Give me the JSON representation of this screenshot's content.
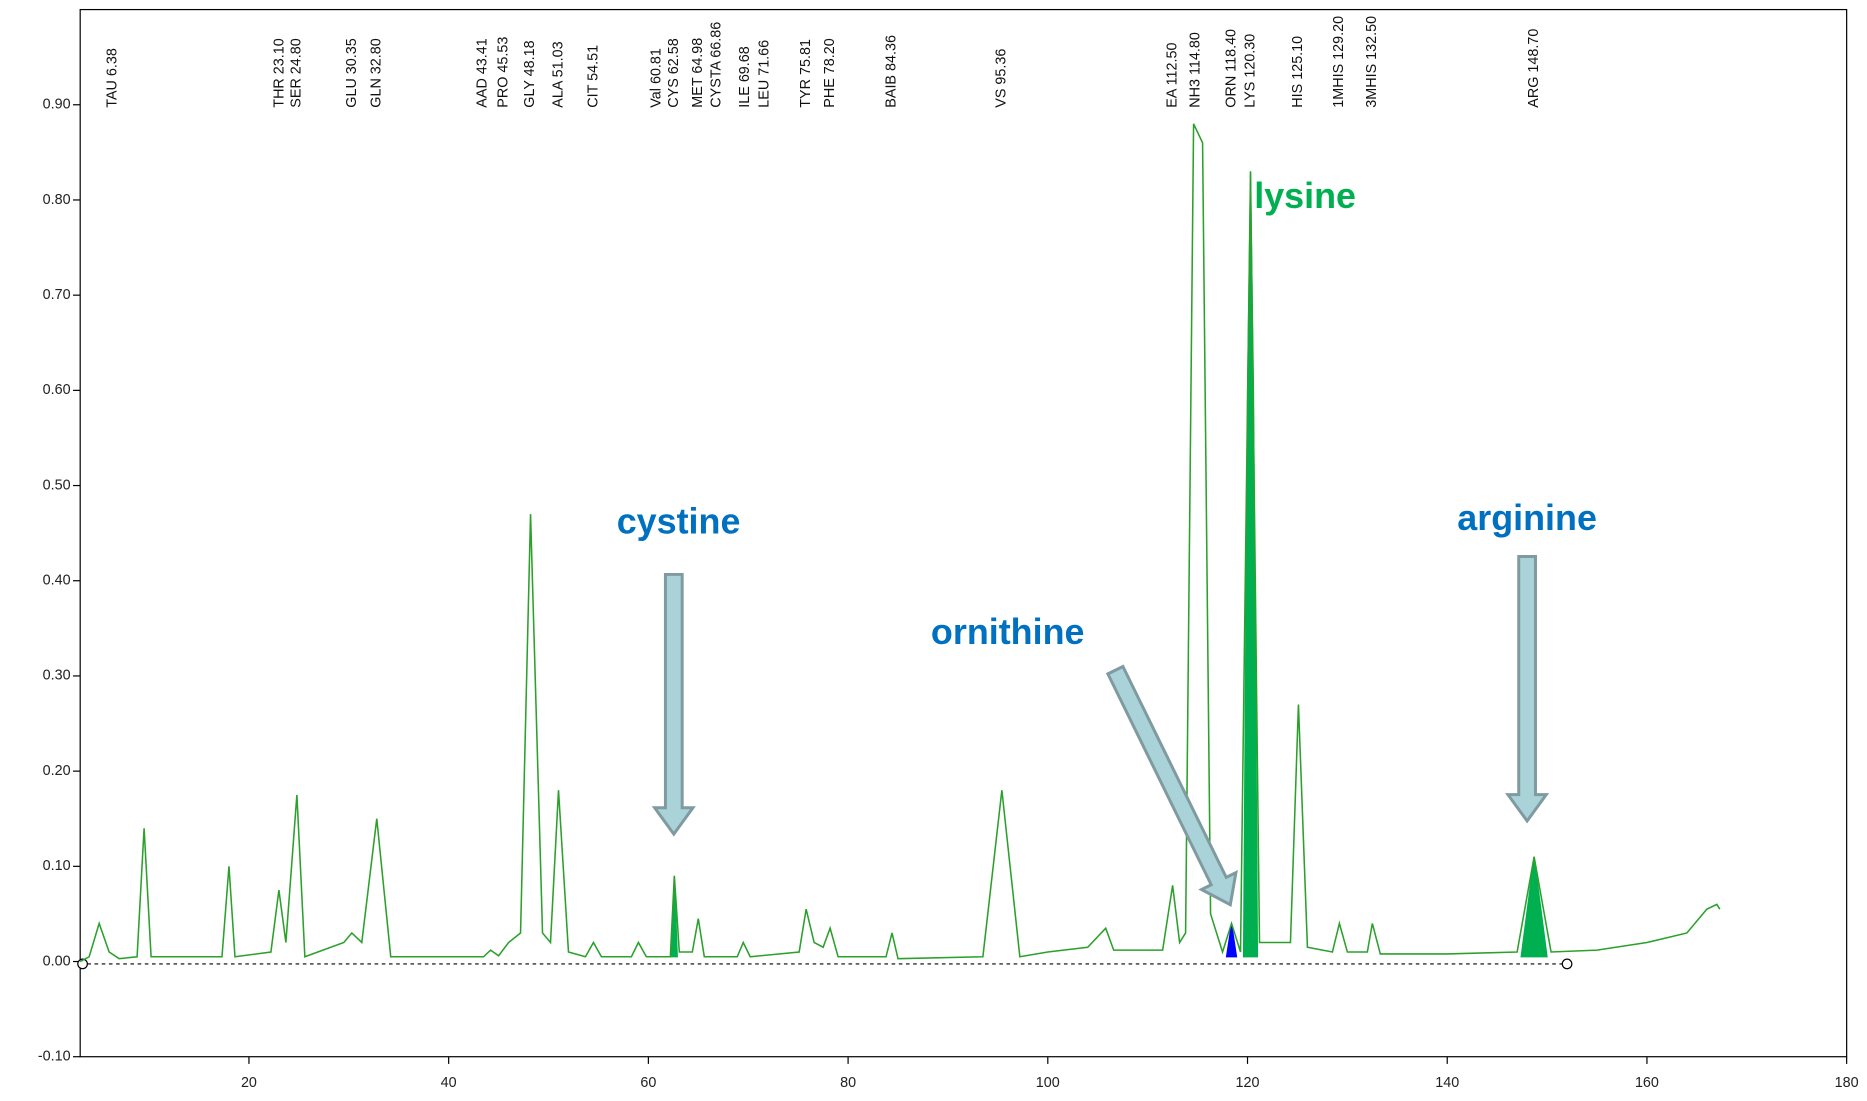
{
  "chart_data": {
    "type": "line",
    "xlim": [
      3.1,
      180
    ],
    "ylim": [
      -0.1,
      1.0
    ],
    "xticks": [
      20,
      40,
      60,
      80,
      100,
      120,
      140,
      160,
      180
    ],
    "yticks": [
      {
        "value": -0.1,
        "label": "-0.10"
      },
      {
        "value": 0,
        "label": "0.00"
      },
      {
        "value": 0.1,
        "label": "0.10"
      },
      {
        "value": 0.2,
        "label": "0.20"
      },
      {
        "value": 0.3,
        "label": "0.30"
      },
      {
        "value": 0.4,
        "label": "0.40"
      },
      {
        "value": 0.5,
        "label": "0.50"
      },
      {
        "value": 0.6,
        "label": "0.60"
      },
      {
        "value": 0.7,
        "label": "0.70"
      },
      {
        "value": 0.8,
        "label": "0.80"
      },
      {
        "value": 0.9,
        "label": "0.90"
      }
    ],
    "color": "#2ca02c",
    "x": [
      3.1,
      4,
      5,
      6,
      7,
      8.8,
      9.5,
      10.2,
      17.3,
      18,
      18.6,
      22.2,
      23,
      23.7,
      24.8,
      25.6,
      29.5,
      30.3,
      31.3,
      32.8,
      34.2,
      43.5,
      44.2,
      45,
      46,
      47.2,
      48.2,
      49.4,
      50.2,
      51,
      52,
      53.7,
      54.5,
      55.3,
      58.3,
      59,
      59.8,
      62.2,
      62.6,
      63.1,
      64.4,
      65,
      65.6,
      68.9,
      69.5,
      70.2,
      75.1,
      75.8,
      76.6,
      77.5,
      78.2,
      79,
      83.8,
      84.4,
      85,
      93.5,
      95.4,
      97.2,
      100,
      104,
      105.8,
      106.6,
      111.5,
      112.5,
      113.2,
      113.8,
      114.6,
      115.5,
      116.3,
      117.5,
      118.4,
      119.3,
      120.3,
      121.2,
      124.3,
      125.1,
      126,
      128.5,
      129.2,
      130,
      132,
      132.5,
      133.3,
      140,
      147,
      148.7,
      150.4,
      155,
      160,
      164,
      166,
      167,
      167.3
    ],
    "values": [
      0,
      0.005,
      0.04,
      0.01,
      0.003,
      0.005,
      0.14,
      0.005,
      0.005,
      0.1,
      0.005,
      0.01,
      0.075,
      0.02,
      0.175,
      0.005,
      0.02,
      0.03,
      0.02,
      0.15,
      0.005,
      0.005,
      0.012,
      0.006,
      0.02,
      0.03,
      0.47,
      0.03,
      0.02,
      0.18,
      0.01,
      0.005,
      0.02,
      0.005,
      0.005,
      0.02,
      0.005,
      0.005,
      0.09,
      0.01,
      0.01,
      0.045,
      0.005,
      0.005,
      0.02,
      0.005,
      0.01,
      0.055,
      0.02,
      0.015,
      0.035,
      0.005,
      0.005,
      0.03,
      0.003,
      0.005,
      0.18,
      0.005,
      0.01,
      0.015,
      0.035,
      0.012,
      0.012,
      0.08,
      0.02,
      0.03,
      0.88,
      0.86,
      0.05,
      0.01,
      0.04,
      0.01,
      0.83,
      0.02,
      0.02,
      0.27,
      0.015,
      0.01,
      0.04,
      0.01,
      0.01,
      0.04,
      0.008,
      0.008,
      0.01,
      0.11,
      0.01,
      0.012,
      0.02,
      0.03,
      0.055,
      0.06,
      0.055
    ],
    "fills": [
      {
        "color": "#00b050",
        "x": [
          62.3,
          62.6,
          62.9
        ],
        "values": [
          0.005,
          0.09,
          0.005
        ]
      },
      {
        "color": "#0000ff",
        "x": [
          117.9,
          118.4,
          118.9
        ],
        "values": [
          0.005,
          0.04,
          0.005
        ]
      },
      {
        "color": "#00b050",
        "x": [
          119.6,
          120.0,
          120.3,
          120.6,
          121.0
        ],
        "values": [
          0.005,
          0.6,
          0.83,
          0.6,
          0.005
        ]
      },
      {
        "color": "#00b050",
        "x": [
          147.4,
          148.7,
          150.0
        ],
        "values": [
          0.005,
          0.11,
          0.005
        ]
      }
    ],
    "peak_labels": [
      {
        "text": "TAU 6.38",
        "x": 6.38
      },
      {
        "text": "THR 23.10",
        "x": 23.1
      },
      {
        "text": "SER 24.80",
        "x": 24.8
      },
      {
        "text": "GLU 30.35",
        "x": 30.35
      },
      {
        "text": "GLN 32.80",
        "x": 32.8
      },
      {
        "text": "AAD 43.41",
        "x": 43.41
      },
      {
        "text": "PRO 45.53",
        "x": 45.53
      },
      {
        "text": "GLY 48.18",
        "x": 48.18
      },
      {
        "text": "ALA 51.03",
        "x": 51.03
      },
      {
        "text": "CIT 54.51",
        "x": 54.51
      },
      {
        "text": "Val 60.81",
        "x": 60.81
      },
      {
        "text": "CYS 62.58",
        "x": 62.58
      },
      {
        "text": "MET 64.98",
        "x": 64.98
      },
      {
        "text": "CYSTA 66.86",
        "x": 66.86
      },
      {
        "text": "ILE 69.68",
        "x": 69.68
      },
      {
        "text": "LEU 71.66",
        "x": 71.66
      },
      {
        "text": "TYR 75.81",
        "x": 75.81
      },
      {
        "text": "PHE 78.20",
        "x": 78.2
      },
      {
        "text": "BAIB 84.36",
        "x": 84.36
      },
      {
        "text": "VS 95.36",
        "x": 95.36
      },
      {
        "text": "EA 112.50",
        "x": 112.5
      },
      {
        "text": "NH3 114.80",
        "x": 114.8
      },
      {
        "text": "ORN 118.40",
        "x": 118.4
      },
      {
        "text": "LYS 120.30",
        "x": 120.3
      },
      {
        "text": "HIS 125.10",
        "x": 125.1
      },
      {
        "text": "1MHIS 129.20",
        "x": 129.2
      },
      {
        "text": "3MHIS 132.50",
        "x": 132.5
      },
      {
        "text": "ARG 148.70",
        "x": 148.7
      }
    ],
    "annotations": [
      {
        "text": "cystine",
        "color": "#0070c0"
      },
      {
        "text": "lysine",
        "color": "#00b050"
      },
      {
        "text": "ornithine",
        "color": "#0070c0"
      },
      {
        "text": "arginine",
        "color": "#0070c0"
      }
    ]
  }
}
